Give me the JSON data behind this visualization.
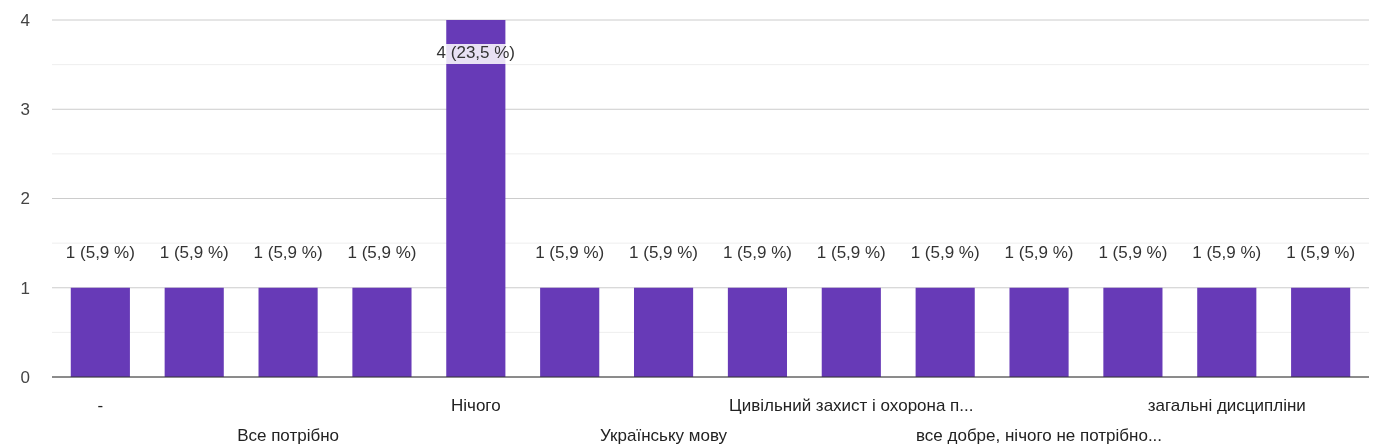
{
  "chart_data": {
    "type": "bar",
    "categories": [
      "-",
      null,
      "Все потрібно",
      null,
      "Нічого",
      null,
      "Українську мову",
      null,
      "Цивільний захист і охорона п...",
      null,
      "все добре, нічого не потрібно...",
      null,
      "загальні дисципліни",
      null
    ],
    "values": [
      1,
      1,
      1,
      1,
      4,
      1,
      1,
      1,
      1,
      1,
      1,
      1,
      1,
      1
    ],
    "color": "#673ab7",
    "value_labels": [
      "1 (5,9 %)",
      "1 (5,9 %)",
      "1 (5,9 %)",
      "1 (5,9 %)",
      "4 (23,5 %)",
      "1 (5,9 %)",
      "1 (5,9 %)",
      "1 (5,9 %)",
      "1 (5,9 %)",
      "1 (5,9 %)",
      "1 (5,9 %)",
      "1 (5,9 %)",
      "1 (5,9 %)",
      "1 (5,9 %)"
    ],
    "ylim": [
      0,
      4
    ],
    "yticks": [
      0,
      {
        "value": 0.5,
        "label": null
      },
      1,
      {
        "value": 1.5,
        "label": null
      },
      2,
      {
        "value": 2.5,
        "label": null
      },
      3,
      {
        "value": 3.5,
        "label": null
      },
      4
    ],
    "grid": true
  }
}
